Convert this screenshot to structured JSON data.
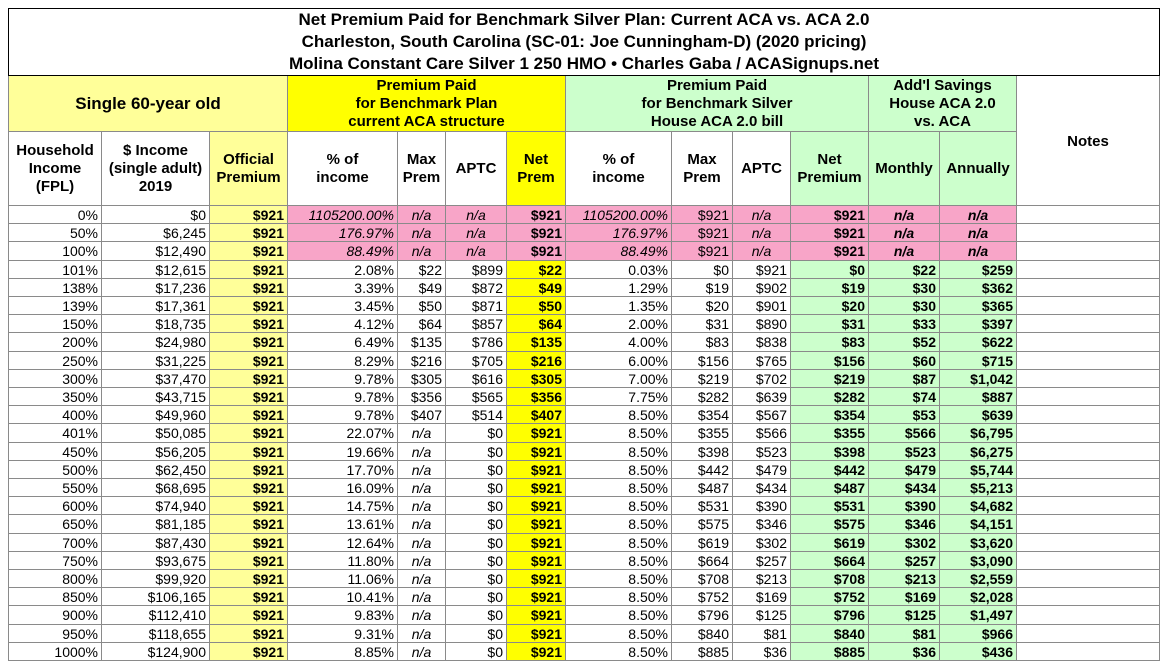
{
  "header": {
    "title": [
      "Net Premium Paid for Benchmark Silver Plan: Current ACA vs. ACA 2.0",
      "Charleston, South Carolina (SC-01: Joe Cunningham-D) (2020 pricing)",
      "Molina Constant Care Silver 1 250 HMO • Charles Gaba / ACASignups.net"
    ]
  },
  "table": {
    "groups": [
      "Single 60-year old",
      "Premium Paid\nfor Benchmark Plan\ncurrent ACA structure",
      "Premium Paid\nfor Benchmark Silver\nHouse ACA 2.0 bill",
      "Add'l Savings\nHouse ACA 2.0\nvs. ACA",
      "Notes"
    ],
    "columns": [
      "Household\nIncome\n(FPL)",
      "$ Income\n(single adult)\n2019",
      "Official\nPremium",
      "% of\nincome",
      "Max\nPrem",
      "APTC",
      "Net\nPrem",
      "% of\nincome",
      "Max\nPrem",
      "APTC",
      "Net\nPremium",
      "Monthly",
      "Annually"
    ],
    "rows": [
      [
        "0%",
        "$0",
        "$921",
        "1105200.00%",
        "n/a",
        "n/a",
        "$921",
        "1105200.00%",
        "$921",
        "n/a",
        "$921",
        "n/a",
        "n/a"
      ],
      [
        "50%",
        "$6,245",
        "$921",
        "176.97%",
        "n/a",
        "n/a",
        "$921",
        "176.97%",
        "$921",
        "n/a",
        "$921",
        "n/a",
        "n/a"
      ],
      [
        "100%",
        "$12,490",
        "$921",
        "88.49%",
        "n/a",
        "n/a",
        "$921",
        "88.49%",
        "$921",
        "n/a",
        "$921",
        "n/a",
        "n/a"
      ],
      [
        "101%",
        "$12,615",
        "$921",
        "2.08%",
        "$22",
        "$899",
        "$22",
        "0.03%",
        "$0",
        "$921",
        "$0",
        "$22",
        "$259"
      ],
      [
        "138%",
        "$17,236",
        "$921",
        "3.39%",
        "$49",
        "$872",
        "$49",
        "1.29%",
        "$19",
        "$902",
        "$19",
        "$30",
        "$362"
      ],
      [
        "139%",
        "$17,361",
        "$921",
        "3.45%",
        "$50",
        "$871",
        "$50",
        "1.35%",
        "$20",
        "$901",
        "$20",
        "$30",
        "$365"
      ],
      [
        "150%",
        "$18,735",
        "$921",
        "4.12%",
        "$64",
        "$857",
        "$64",
        "2.00%",
        "$31",
        "$890",
        "$31",
        "$33",
        "$397"
      ],
      [
        "200%",
        "$24,980",
        "$921",
        "6.49%",
        "$135",
        "$786",
        "$135",
        "4.00%",
        "$83",
        "$838",
        "$83",
        "$52",
        "$622"
      ],
      [
        "250%",
        "$31,225",
        "$921",
        "8.29%",
        "$216",
        "$705",
        "$216",
        "6.00%",
        "$156",
        "$765",
        "$156",
        "$60",
        "$715"
      ],
      [
        "300%",
        "$37,470",
        "$921",
        "9.78%",
        "$305",
        "$616",
        "$305",
        "7.00%",
        "$219",
        "$702",
        "$219",
        "$87",
        "$1,042"
      ],
      [
        "350%",
        "$43,715",
        "$921",
        "9.78%",
        "$356",
        "$565",
        "$356",
        "7.75%",
        "$282",
        "$639",
        "$282",
        "$74",
        "$887"
      ],
      [
        "400%",
        "$49,960",
        "$921",
        "9.78%",
        "$407",
        "$514",
        "$407",
        "8.50%",
        "$354",
        "$567",
        "$354",
        "$53",
        "$639"
      ],
      [
        "401%",
        "$50,085",
        "$921",
        "22.07%",
        "n/a",
        "$0",
        "$921",
        "8.50%",
        "$355",
        "$566",
        "$355",
        "$566",
        "$6,795"
      ],
      [
        "450%",
        "$56,205",
        "$921",
        "19.66%",
        "n/a",
        "$0",
        "$921",
        "8.50%",
        "$398",
        "$523",
        "$398",
        "$523",
        "$6,275"
      ],
      [
        "500%",
        "$62,450",
        "$921",
        "17.70%",
        "n/a",
        "$0",
        "$921",
        "8.50%",
        "$442",
        "$479",
        "$442",
        "$479",
        "$5,744"
      ],
      [
        "550%",
        "$68,695",
        "$921",
        "16.09%",
        "n/a",
        "$0",
        "$921",
        "8.50%",
        "$487",
        "$434",
        "$487",
        "$434",
        "$5,213"
      ],
      [
        "600%",
        "$74,940",
        "$921",
        "14.75%",
        "n/a",
        "$0",
        "$921",
        "8.50%",
        "$531",
        "$390",
        "$531",
        "$390",
        "$4,682"
      ],
      [
        "650%",
        "$81,185",
        "$921",
        "13.61%",
        "n/a",
        "$0",
        "$921",
        "8.50%",
        "$575",
        "$346",
        "$575",
        "$346",
        "$4,151"
      ],
      [
        "700%",
        "$87,430",
        "$921",
        "12.64%",
        "n/a",
        "$0",
        "$921",
        "8.50%",
        "$619",
        "$302",
        "$619",
        "$302",
        "$3,620"
      ],
      [
        "750%",
        "$93,675",
        "$921",
        "11.80%",
        "n/a",
        "$0",
        "$921",
        "8.50%",
        "$664",
        "$257",
        "$664",
        "$257",
        "$3,090"
      ],
      [
        "800%",
        "$99,920",
        "$921",
        "11.06%",
        "n/a",
        "$0",
        "$921",
        "8.50%",
        "$708",
        "$213",
        "$708",
        "$213",
        "$2,559"
      ],
      [
        "850%",
        "$106,165",
        "$921",
        "10.41%",
        "n/a",
        "$0",
        "$921",
        "8.50%",
        "$752",
        "$169",
        "$752",
        "$169",
        "$2,028"
      ],
      [
        "900%",
        "$112,410",
        "$921",
        "9.83%",
        "n/a",
        "$0",
        "$921",
        "8.50%",
        "$796",
        "$125",
        "$796",
        "$125",
        "$1,497"
      ],
      [
        "950%",
        "$118,655",
        "$921",
        "9.31%",
        "n/a",
        "$0",
        "$921",
        "8.50%",
        "$840",
        "$81",
        "$840",
        "$81",
        "$966"
      ],
      [
        "1000%",
        "$124,900",
        "$921",
        "8.85%",
        "n/a",
        "$0",
        "$921",
        "8.50%",
        "$885",
        "$36",
        "$885",
        "$36",
        "$436"
      ]
    ]
  }
}
